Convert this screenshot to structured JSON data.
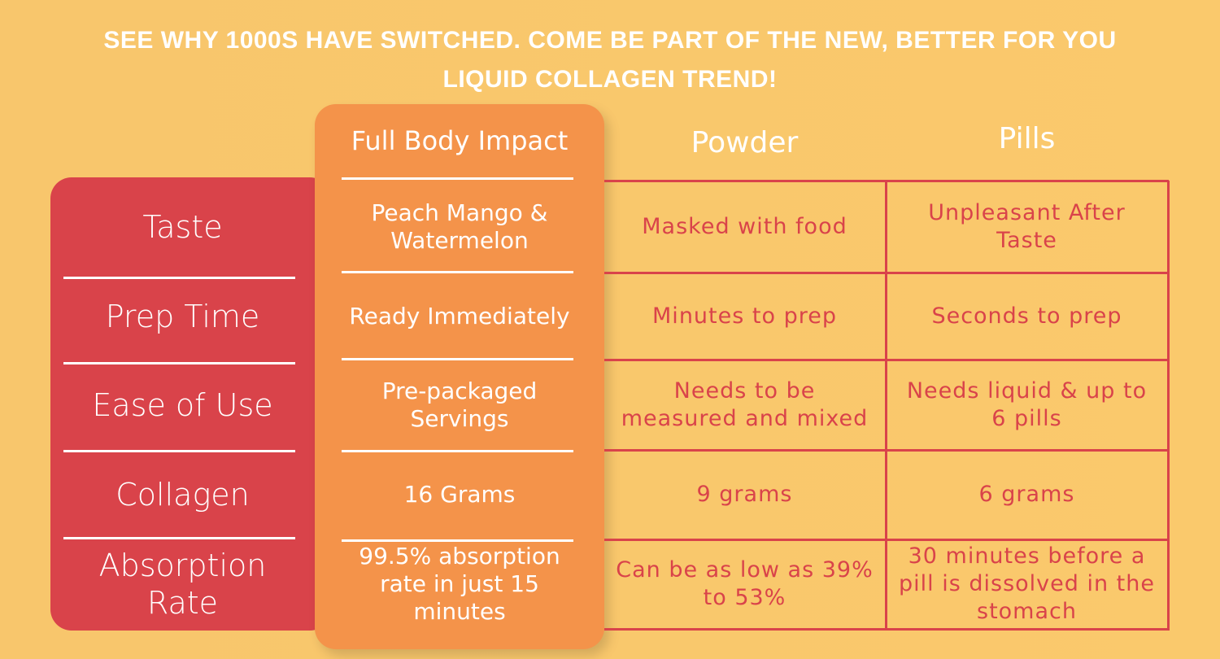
{
  "header": {
    "title": "SEE WHY 1000S HAVE SWITCHED. COME BE PART OF THE NEW, BETTER FOR YOU LIQUID COLLAGEN TREND!"
  },
  "table": {
    "columns": [
      "Full Body Impact",
      "Powder",
      "Pills"
    ],
    "rows": [
      [
        "Taste",
        "Peach Mango & Watermelon",
        "Masked with food",
        "Unpleasant After Taste"
      ],
      [
        "Prep Time",
        "Ready Immediately",
        "Minutes to prep",
        "Seconds to prep"
      ],
      [
        "Ease of Use",
        "Pre-packaged Servings",
        "Needs to be measured and mixed",
        "Needs liquid & up to 6 pills"
      ],
      [
        "Collagen",
        "16 Grams",
        "9 grams",
        "6 grams"
      ],
      [
        "Absorption Rate",
        "99.5% absorption rate in just 15 minutes",
        "Can be as low as 39% to 53%",
        "30 minutes before a pill is dissolved in the stomach"
      ]
    ]
  }
}
